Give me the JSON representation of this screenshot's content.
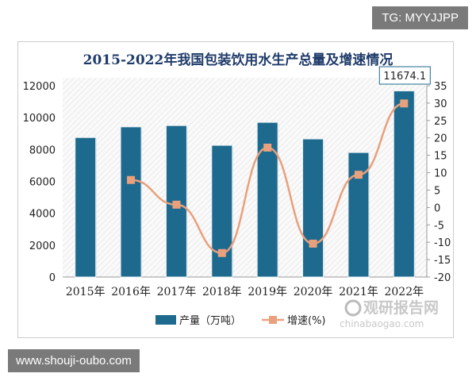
{
  "watermark_top": "TG: MYYJJPP",
  "watermark_bottom": "www.shouji-oubo.com",
  "logo": {
    "cn": "观研报告网",
    "en": "chinabaogao.com"
  },
  "chart_data": {
    "type": "bar+line",
    "title": "2015-2022年我国包装饮用水生产总量及增速情况",
    "categories": [
      "2015年",
      "2016年",
      "2017年",
      "2018年",
      "2019年",
      "2020年",
      "2021年",
      "2022年"
    ],
    "series": [
      {
        "name": "产量（万吨）",
        "type": "bar",
        "axis": "left",
        "color": "#1d6a8e",
        "values": [
          8750,
          9420,
          9500,
          8260,
          9700,
          8660,
          7810,
          11674.1
        ]
      },
      {
        "name": "增速(%)",
        "type": "line",
        "axis": "right",
        "color": "#e9a07c",
        "values": [
          null,
          7.9,
          0.8,
          -13.1,
          17.2,
          -10.4,
          9.4,
          29.9
        ]
      }
    ],
    "annotation": "11674.1",
    "yleft": {
      "range": [
        0,
        12000
      ],
      "ticks": [
        "0",
        "2000",
        "4000",
        "6000",
        "8000",
        "10000",
        "12000"
      ]
    },
    "yright": {
      "range": [
        -20,
        35
      ],
      "ticks": [
        "-20",
        "-15",
        "-10",
        "-5",
        "0",
        "5",
        "10",
        "15",
        "20",
        "25",
        "30",
        "35"
      ]
    },
    "legend_placement": "bottom",
    "grid": false
  }
}
